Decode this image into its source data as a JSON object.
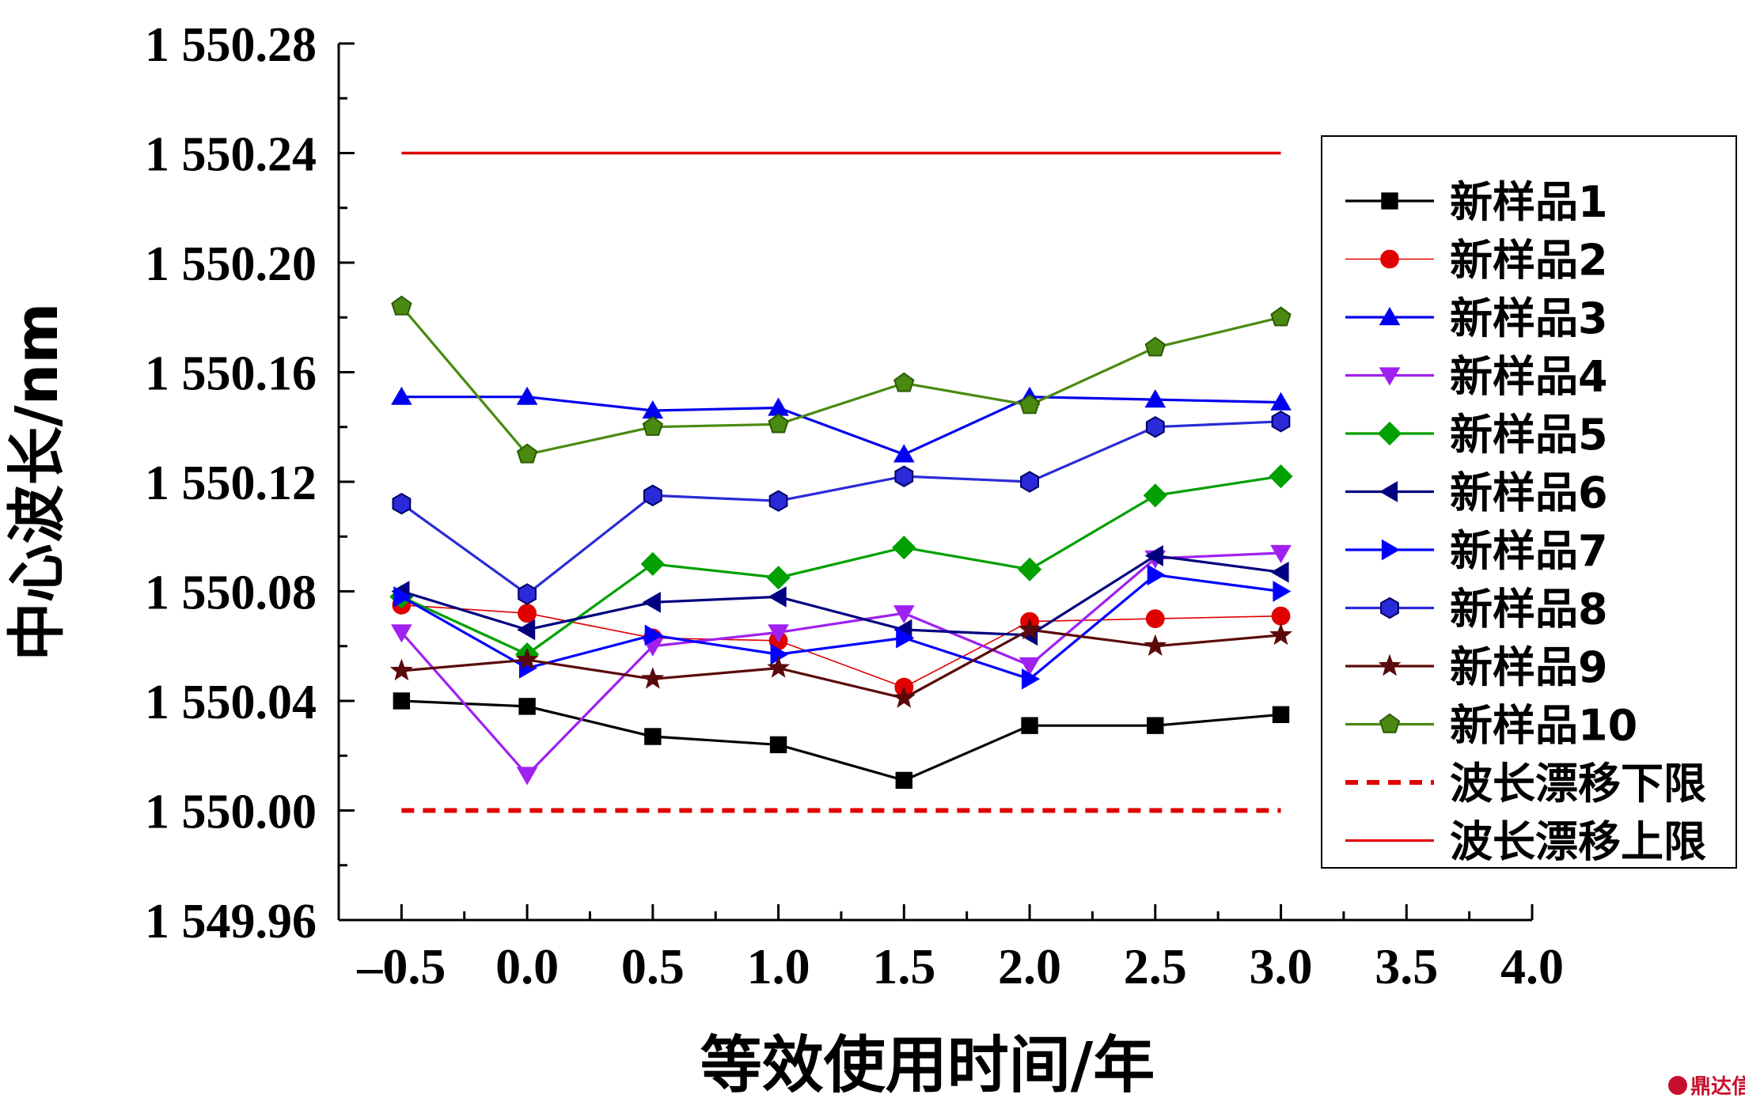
{
  "chart_data": {
    "type": "line",
    "title": "",
    "xlabel": "等效使用时间/年",
    "ylabel": "中心波长/nm",
    "xlim": [
      -0.75,
      4.0
    ],
    "ylim": [
      1549.96,
      1550.28
    ],
    "x_ticks": [
      -0.5,
      0.0,
      0.5,
      1.0,
      1.5,
      2.0,
      2.5,
      3.0,
      3.5,
      4.0
    ],
    "x_tick_labels": [
      "–0.5",
      "0.0",
      "0.5",
      "1.0",
      "1.5",
      "2.0",
      "2.5",
      "3.0",
      "3.5",
      "4.0"
    ],
    "y_ticks": [
      1549.96,
      1550.0,
      1550.04,
      1550.08,
      1550.12,
      1550.16,
      1550.2,
      1550.24,
      1550.28
    ],
    "y_tick_labels": [
      "1 549.96",
      "1 550.00",
      "1 550.04",
      "1 550.08",
      "1 550.12",
      "1 550.16",
      "1 550.20",
      "1 550.24",
      "1 550.28"
    ],
    "grid": false,
    "legend_position": "right",
    "x": [
      -0.5,
      0.0,
      0.5,
      1.0,
      1.5,
      2.0,
      2.5,
      3.0
    ],
    "series": [
      {
        "name": "新样品1",
        "color": "#000000",
        "marker": "square",
        "values": [
          1550.04,
          1550.038,
          1550.027,
          1550.024,
          1550.011,
          1550.031,
          1550.031,
          1550.035
        ]
      },
      {
        "name": "新样品2",
        "color": "#e00000",
        "marker": "circle",
        "thin": true,
        "values": [
          1550.075,
          1550.072,
          1550.063,
          1550.062,
          1550.045,
          1550.069,
          1550.07,
          1550.071
        ]
      },
      {
        "name": "新样品3",
        "color": "#0000ee",
        "marker": "triangle-up",
        "values": [
          1550.151,
          1550.151,
          1550.146,
          1550.147,
          1550.13,
          1550.151,
          1550.15,
          1550.149
        ]
      },
      {
        "name": "新样品4",
        "color": "#a020f0",
        "marker": "triangle-down",
        "values": [
          1550.065,
          1550.013,
          1550.06,
          1550.065,
          1550.072,
          1550.053,
          1550.092,
          1550.094
        ]
      },
      {
        "name": "新样品5",
        "color": "#00a000",
        "marker": "diamond",
        "values": [
          1550.078,
          1550.057,
          1550.09,
          1550.085,
          1550.096,
          1550.088,
          1550.115,
          1550.122
        ]
      },
      {
        "name": "新样品6",
        "color": "#000080",
        "marker": "triangle-left",
        "values": [
          1550.08,
          1550.066,
          1550.076,
          1550.078,
          1550.066,
          1550.064,
          1550.093,
          1550.087
        ]
      },
      {
        "name": "新样品7",
        "color": "#0000ff",
        "marker": "triangle-right",
        "values": [
          1550.078,
          1550.052,
          1550.064,
          1550.057,
          1550.063,
          1550.048,
          1550.086,
          1550.08
        ]
      },
      {
        "name": "新样品8",
        "color": "#2a2ad8",
        "marker": "hexagon",
        "values": [
          1550.112,
          1550.079,
          1550.115,
          1550.113,
          1550.122,
          1550.12,
          1550.14,
          1550.142
        ]
      },
      {
        "name": "新样品9",
        "color": "#5a0a0a",
        "marker": "star",
        "values": [
          1550.051,
          1550.055,
          1550.048,
          1550.052,
          1550.041,
          1550.066,
          1550.06,
          1550.064
        ]
      },
      {
        "name": "新样品10",
        "color": "#4a8a10",
        "marker": "pentagon",
        "values": [
          1550.184,
          1550.13,
          1550.14,
          1550.141,
          1550.156,
          1550.148,
          1550.169,
          1550.18
        ]
      }
    ],
    "reference_lines": [
      {
        "name": "波长漂移下限",
        "color": "#e00000",
        "style": "dashed",
        "value": 1550.0,
        "x_range": [
          -0.5,
          3.0
        ]
      },
      {
        "name": "波长漂移上限",
        "color": "#e00000",
        "style": "solid",
        "value": 1550.24,
        "x_range": [
          -0.5,
          3.0
        ]
      }
    ]
  },
  "watermark": {
    "text": "鼎达信",
    "color": "#c8102e"
  }
}
